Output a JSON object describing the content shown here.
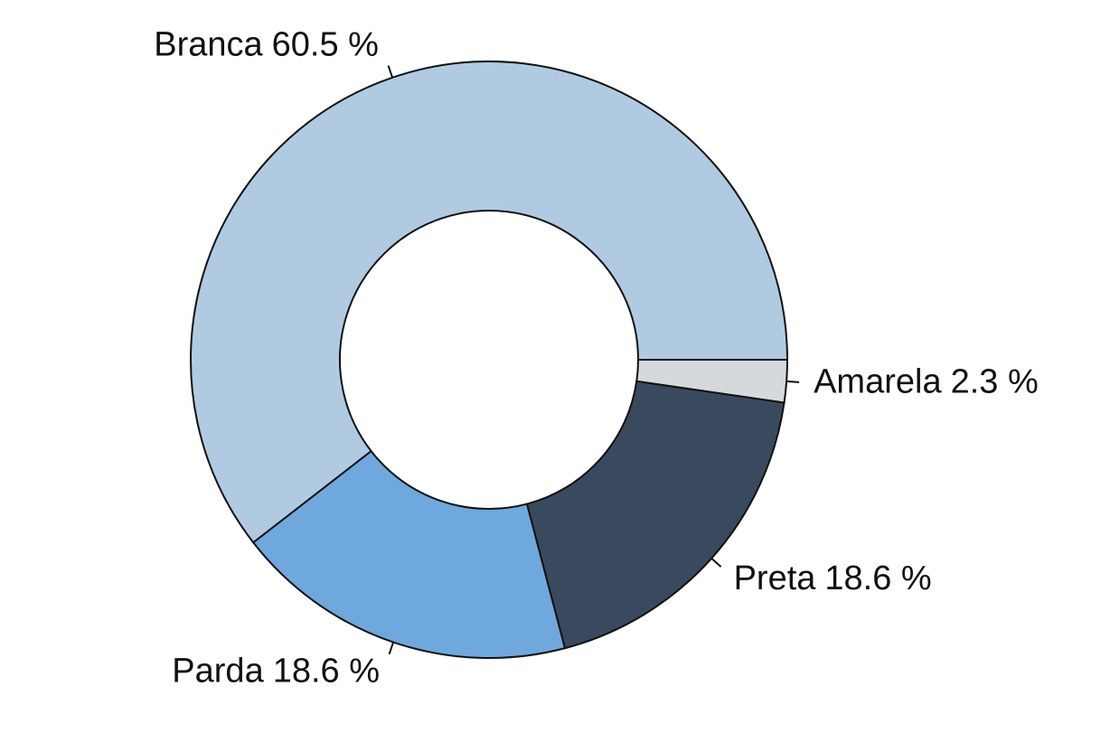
{
  "chart_data": {
    "type": "donut",
    "categories": [
      "Branca",
      "Parda",
      "Preta",
      "Amarela"
    ],
    "values": [
      60.5,
      18.6,
      18.6,
      2.3
    ],
    "value_labels": [
      "60.5 %",
      "18.6 %",
      "18.6 %",
      "2.3 %"
    ],
    "colors": [
      "#b0cbe1",
      "#6fa8dc",
      "#3a4a5e",
      "#d5d9dc"
    ]
  }
}
